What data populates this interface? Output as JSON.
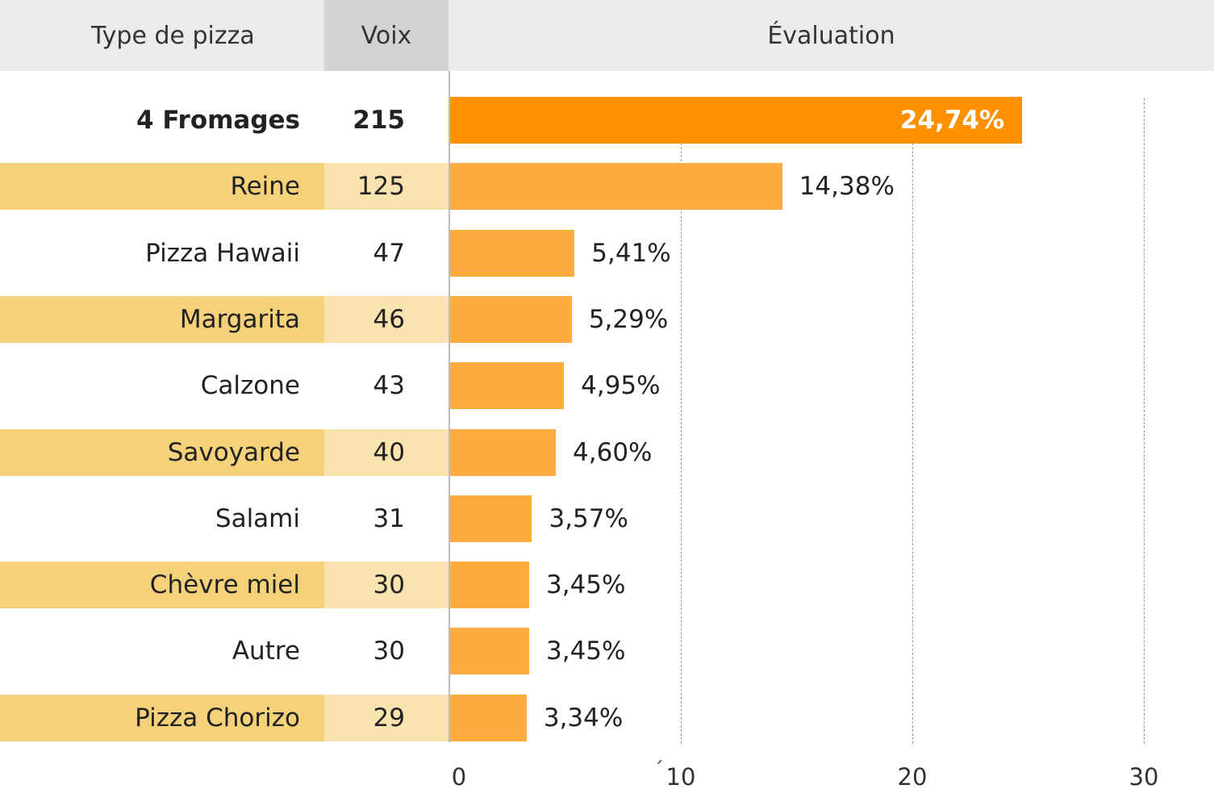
{
  "chart_data": {
    "type": "bar",
    "orientation": "horizontal",
    "columns": [
      "Type de pizza",
      "Voix",
      "Évaluation"
    ],
    "rows": [
      {
        "category": "4 Fromages",
        "votes": "215",
        "value": 24.74,
        "label": "24,74%",
        "highlight": true
      },
      {
        "category": "Reine",
        "votes": "125",
        "value": 14.38,
        "label": "14,38%"
      },
      {
        "category": "Pizza Hawaii",
        "votes": "47",
        "value": 5.41,
        "label": "5,41%"
      },
      {
        "category": "Margarita",
        "votes": "46",
        "value": 5.29,
        "label": "5,29%"
      },
      {
        "category": "Calzone",
        "votes": "43",
        "value": 4.95,
        "label": "4,95%"
      },
      {
        "category": "Savoyarde",
        "votes": "40",
        "value": 4.6,
        "label": "4,60%"
      },
      {
        "category": "Salami",
        "votes": "31",
        "value": 3.57,
        "label": "3,57%"
      },
      {
        "category": "Chèvre miel",
        "votes": "30",
        "value": 3.45,
        "label": "3,45%"
      },
      {
        "category": "Autre",
        "votes": "30",
        "value": 3.45,
        "label": "3,45%"
      },
      {
        "category": "Pizza Chorizo",
        "votes": "29",
        "value": 3.34,
        "label": "3,34%"
      }
    ],
    "xlim": [
      0,
      30
    ],
    "ticks": [
      "0",
      "10",
      "20",
      "30"
    ],
    "grid": true,
    "stray_mark": "´"
  },
  "colors": {
    "highlight_bar": "#ff9100",
    "bar": "#ffab40",
    "stripe_type": "#f5d27a",
    "stripe_votes": "#f9e4b0"
  }
}
